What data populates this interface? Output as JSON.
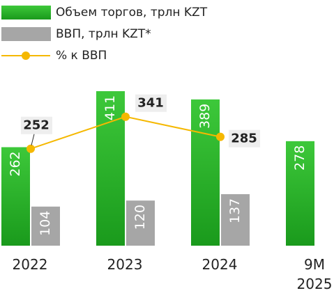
{
  "chart_data": {
    "type": "bar",
    "categories": [
      "2022",
      "2023",
      "2024",
      "9M 2025"
    ],
    "series": [
      {
        "name": "Объем торгов, трлн KZT",
        "color": "#22a822",
        "type": "bar",
        "values": [
          262,
          411,
          389,
          278
        ]
      },
      {
        "name": "ВВП, трлн KZT*",
        "color": "#a6a6a6",
        "type": "bar",
        "values": [
          104,
          120,
          137,
          null
        ]
      },
      {
        "name": "% к ВВП",
        "color": "#f5b800",
        "type": "line",
        "axis": "y2",
        "values": [
          252,
          341,
          285,
          null
        ]
      }
    ]
  }
}
